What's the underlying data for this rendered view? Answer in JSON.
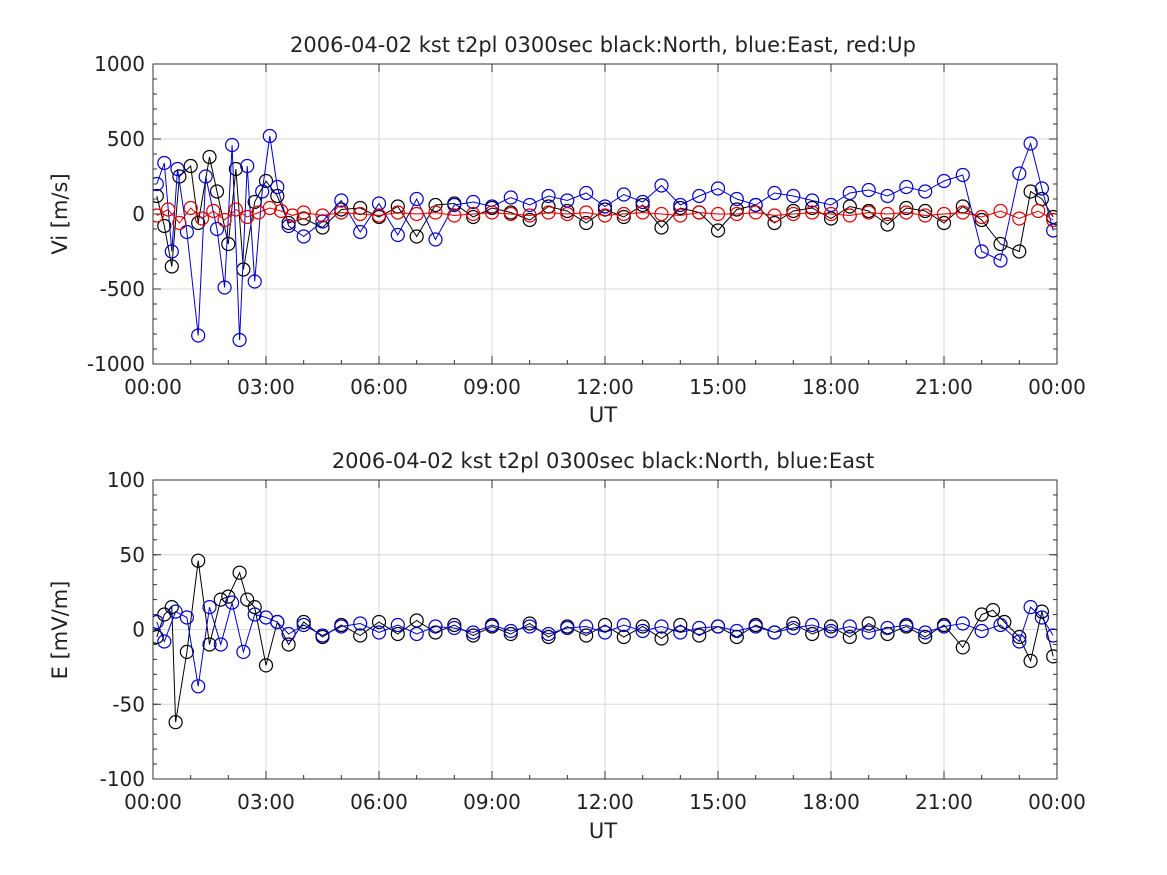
{
  "chart_data": [
    {
      "type": "scatter",
      "title": "2006-04-02 kst t2pl 0300sec black:North, blue:East, red:Up",
      "xlabel": "UT",
      "ylabel": "Vi [m/s]",
      "xlim_hours": [
        0,
        24
      ],
      "ylim": [
        -1000,
        1000
      ],
      "x_ticks": [
        "00:00",
        "03:00",
        "06:00",
        "09:00",
        "12:00",
        "15:00",
        "18:00",
        "21:00",
        "00:00"
      ],
      "y_ticks": [
        1000,
        500,
        0,
        -500,
        -1000
      ],
      "grid": true,
      "series": [
        {
          "color": "#000000",
          "x": [
            0.1,
            0.3,
            0.5,
            0.7,
            1.0,
            1.2,
            1.5,
            1.7,
            2.0,
            2.2,
            2.4,
            2.7,
            3.0,
            3.3,
            3.6,
            4.0,
            4.5,
            5.0,
            5.5,
            6.0,
            6.5,
            7.0,
            7.5,
            8.0,
            8.5,
            9.0,
            9.5,
            10.0,
            10.5,
            11.0,
            11.5,
            12.0,
            12.5,
            13.0,
            13.5,
            14.0,
            14.5,
            15.0,
            15.5,
            16.0,
            16.5,
            17.0,
            17.5,
            18.0,
            18.5,
            19.0,
            19.5,
            20.0,
            20.5,
            21.0,
            21.5,
            22.0,
            22.5,
            23.0,
            23.3,
            23.6,
            23.9
          ],
          "y": [
            120,
            -80,
            -350,
            250,
            320,
            -60,
            380,
            150,
            -200,
            300,
            -370,
            80,
            220,
            120,
            -60,
            -30,
            -90,
            30,
            40,
            -20,
            50,
            -150,
            60,
            70,
            -20,
            40,
            10,
            -40,
            50,
            20,
            -60,
            30,
            -20,
            60,
            -90,
            40,
            10,
            -110,
            30,
            60,
            -60,
            20,
            40,
            -30,
            50,
            20,
            -70,
            40,
            20,
            -60,
            50,
            -40,
            -200,
            -250,
            150,
            100,
            -20
          ]
        },
        {
          "color": "#0000cc",
          "x": [
            0.1,
            0.3,
            0.5,
            0.65,
            0.9,
            1.2,
            1.4,
            1.7,
            1.9,
            2.1,
            2.3,
            2.5,
            2.7,
            2.9,
            3.1,
            3.3,
            3.6,
            4.0,
            4.5,
            5.0,
            5.5,
            6.0,
            6.5,
            7.0,
            7.5,
            8.0,
            8.5,
            9.0,
            9.5,
            10.0,
            10.5,
            11.0,
            11.5,
            12.0,
            12.5,
            13.0,
            13.5,
            14.0,
            14.5,
            15.0,
            15.5,
            16.0,
            16.5,
            17.0,
            17.5,
            18.0,
            18.5,
            19.0,
            19.5,
            20.0,
            20.5,
            21.0,
            21.5,
            22.0,
            22.5,
            23.0,
            23.3,
            23.6,
            23.9
          ],
          "y": [
            200,
            340,
            -250,
            300,
            -120,
            -810,
            250,
            -100,
            -490,
            460,
            -840,
            320,
            -450,
            150,
            520,
            180,
            -80,
            -150,
            -50,
            90,
            -120,
            70,
            -140,
            100,
            -170,
            60,
            80,
            50,
            110,
            60,
            120,
            90,
            140,
            50,
            130,
            80,
            190,
            60,
            120,
            170,
            100,
            60,
            140,
            120,
            90,
            60,
            140,
            160,
            120,
            180,
            150,
            220,
            260,
            -250,
            -310,
            270,
            470,
            170,
            -110
          ]
        },
        {
          "color": "#dd0000",
          "x": [
            0.1,
            0.4,
            0.7,
            1.0,
            1.3,
            1.6,
            1.9,
            2.2,
            2.5,
            2.8,
            3.1,
            3.4,
            3.7,
            4.0,
            4.5,
            5.0,
            5.5,
            6.0,
            6.5,
            7.0,
            7.5,
            8.0,
            8.5,
            9.0,
            9.5,
            10.0,
            10.5,
            11.0,
            11.5,
            12.0,
            12.5,
            13.0,
            13.5,
            14.0,
            14.5,
            15.0,
            15.5,
            16.0,
            16.5,
            17.0,
            17.5,
            18.0,
            18.5,
            19.0,
            19.5,
            20.0,
            20.5,
            21.0,
            21.5,
            22.0,
            22.5,
            23.0,
            23.5,
            23.9
          ],
          "y": [
            -10,
            30,
            -60,
            40,
            -30,
            20,
            -40,
            30,
            -20,
            10,
            40,
            20,
            -10,
            10,
            -10,
            10,
            0,
            -10,
            10,
            0,
            10,
            -10,
            0,
            10,
            0,
            -10,
            10,
            0,
            10,
            -10,
            0,
            10,
            0,
            -10,
            10,
            0,
            0,
            10,
            -10,
            0,
            10,
            0,
            -10,
            10,
            0,
            10,
            -10,
            0,
            10,
            -20,
            20,
            -30,
            20,
            -40
          ]
        }
      ]
    },
    {
      "type": "scatter",
      "title": "2006-04-02 kst t2pl 0300sec black:North, blue:East",
      "xlabel": "UT",
      "ylabel": "E [mV/m]",
      "xlim_hours": [
        0,
        24
      ],
      "ylim": [
        -100,
        100
      ],
      "x_ticks": [
        "00:00",
        "03:00",
        "06:00",
        "09:00",
        "12:00",
        "15:00",
        "18:00",
        "21:00",
        "00:00"
      ],
      "y_ticks": [
        100,
        50,
        0,
        -50,
        -100
      ],
      "grid": true,
      "series": [
        {
          "color": "#000000",
          "x": [
            0.1,
            0.3,
            0.5,
            0.6,
            0.9,
            1.2,
            1.5,
            1.8,
            2.0,
            2.3,
            2.5,
            2.7,
            3.0,
            3.3,
            3.6,
            4.0,
            4.5,
            5.0,
            5.5,
            6.0,
            6.5,
            7.0,
            7.5,
            8.0,
            8.5,
            9.0,
            9.5,
            10.0,
            10.5,
            11.0,
            11.5,
            12.0,
            12.5,
            13.0,
            13.5,
            14.0,
            14.5,
            15.0,
            15.5,
            16.0,
            16.5,
            17.0,
            17.5,
            18.0,
            18.5,
            19.0,
            19.5,
            20.0,
            20.5,
            21.0,
            21.5,
            22.0,
            22.3,
            22.6,
            23.0,
            23.3,
            23.6,
            23.9
          ],
          "y": [
            -5,
            10,
            15,
            -62,
            -15,
            46,
            -10,
            20,
            22,
            38,
            20,
            15,
            -24,
            5,
            -10,
            5,
            -5,
            3,
            -4,
            5,
            -3,
            6,
            -2,
            3,
            -4,
            2,
            -3,
            4,
            -5,
            2,
            -4,
            3,
            -5,
            2,
            -6,
            3,
            -4,
            2,
            -5,
            3,
            -2,
            4,
            -3,
            2,
            -5,
            4,
            -3,
            2,
            -5,
            3,
            -12,
            10,
            13,
            5,
            -5,
            -21,
            12,
            -18
          ]
        },
        {
          "color": "#0000cc",
          "x": [
            0.1,
            0.3,
            0.6,
            0.9,
            1.2,
            1.5,
            1.8,
            2.1,
            2.4,
            2.7,
            3.0,
            3.3,
            3.6,
            4.0,
            4.5,
            5.0,
            5.5,
            6.0,
            6.5,
            7.0,
            7.5,
            8.0,
            8.5,
            9.0,
            9.5,
            10.0,
            10.5,
            11.0,
            11.5,
            12.0,
            12.5,
            13.0,
            13.5,
            14.0,
            14.5,
            15.0,
            15.5,
            16.0,
            16.5,
            17.0,
            17.5,
            18.0,
            18.5,
            19.0,
            19.5,
            20.0,
            20.5,
            21.0,
            21.5,
            22.0,
            22.5,
            23.0,
            23.3,
            23.6,
            23.9
          ],
          "y": [
            5,
            -8,
            12,
            8,
            -38,
            15,
            -10,
            18,
            -15,
            10,
            8,
            5,
            -3,
            3,
            -4,
            2,
            4,
            -2,
            3,
            -3,
            2,
            1,
            -2,
            3,
            -1,
            2,
            -3,
            1,
            2,
            -2,
            3,
            -1,
            2,
            -2,
            1,
            2,
            -1,
            2,
            -2,
            1,
            3,
            -1,
            2,
            -2,
            1,
            3,
            -2,
            2,
            4,
            -1,
            3,
            -8,
            15,
            8,
            -4
          ]
        }
      ]
    }
  ]
}
